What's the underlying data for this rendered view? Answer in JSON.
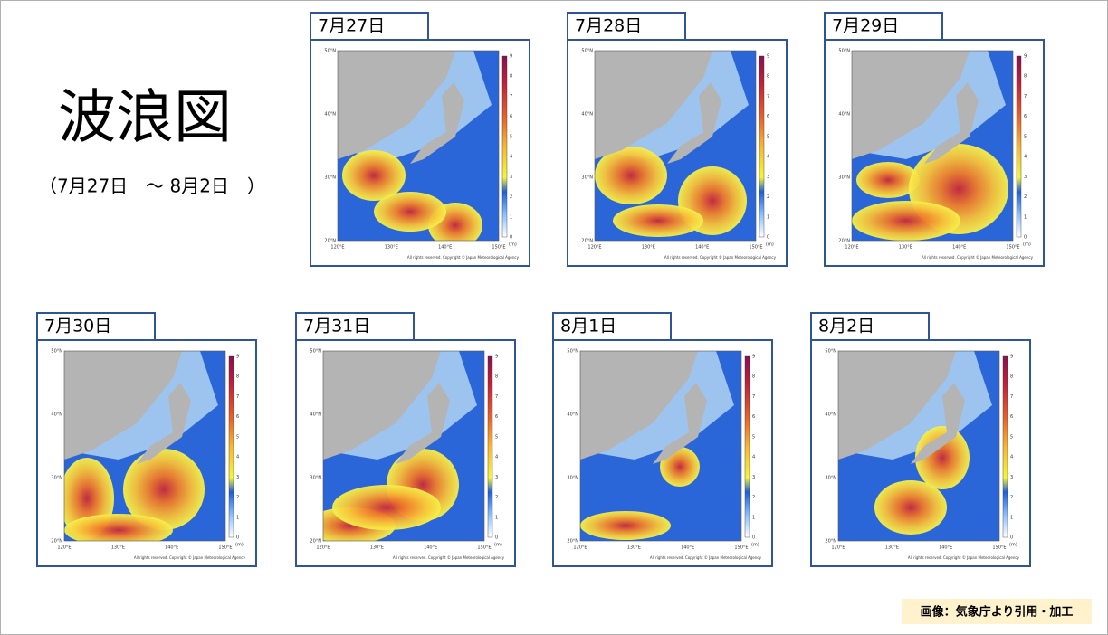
{
  "header": {
    "title": "波浪図",
    "subtitle": "（7月27日　～ 8月2日　）"
  },
  "maps": {
    "lat_labels": [
      "50°N",
      "40°N",
      "30°N",
      "20°N"
    ],
    "lon_labels": [
      "120°E",
      "130°E",
      "140°E",
      "150°E"
    ],
    "colorbar_labels": [
      9,
      8,
      7,
      6,
      5,
      4,
      3,
      2,
      1,
      0
    ],
    "unit": "(m)",
    "copyright": "All rights reserved. Copyright © Japan Meteorological Agency"
  },
  "panels": [
    {
      "date": "7月27日"
    },
    {
      "date": "7月28日"
    },
    {
      "date": "7月29日"
    },
    {
      "date": "7月30日"
    },
    {
      "date": "7月31日"
    },
    {
      "date": "8月1日"
    },
    {
      "date": "8月2日"
    }
  ],
  "credit": "画像：気象庁より引用・加工"
}
